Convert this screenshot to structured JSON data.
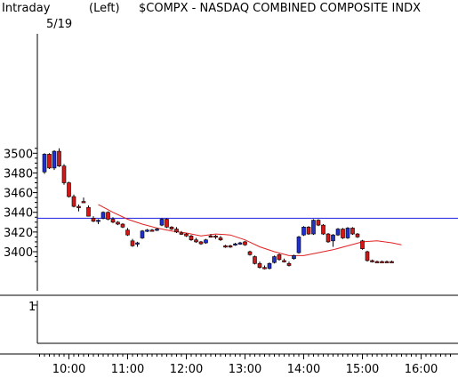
{
  "header": {
    "period": "Intraday",
    "date": "5/19",
    "scale": "(Left)",
    "symbol_title": "$COMPX - NASDAQ COMBINED COMPOSITE INDX"
  },
  "lower_panel": {
    "tick_label": "1"
  },
  "colors": {
    "up_candle": "#1f2fd0",
    "down_candle": "#d01818",
    "moving_average": "#e02020",
    "reference_line": "#2020e0",
    "axis": "#000000"
  },
  "chart_data": {
    "type": "candlestick",
    "title": "$COMPX - NASDAQ COMBINED COMPOSITE INDX",
    "y_ticks": [
      3400,
      3420,
      3440,
      3460,
      3480,
      3500
    ],
    "x_ticks": [
      "10:00",
      "11:00",
      "12:00",
      "13:00",
      "14:00",
      "15:00",
      "16:00"
    ],
    "ylim": [
      3388,
      3510
    ],
    "reference_line": 3434,
    "candles": [
      {
        "time": "9:35",
        "open": 3481,
        "high": 3500,
        "low": 3479,
        "close": 3499,
        "color": "up"
      },
      {
        "time": "9:40",
        "open": 3499,
        "high": 3500,
        "low": 3484,
        "close": 3485,
        "color": "down"
      },
      {
        "time": "9:45",
        "open": 3485,
        "high": 3503,
        "low": 3483,
        "close": 3502,
        "color": "up"
      },
      {
        "time": "9:50",
        "open": 3502,
        "high": 3505,
        "low": 3486,
        "close": 3487,
        "color": "down"
      },
      {
        "time": "9:55",
        "open": 3487,
        "high": 3489,
        "low": 3468,
        "close": 3470,
        "color": "down"
      },
      {
        "time": "10:00",
        "open": 3470,
        "high": 3471,
        "low": 3455,
        "close": 3456,
        "color": "down"
      },
      {
        "time": "10:05",
        "open": 3456,
        "high": 3458,
        "low": 3445,
        "close": 3446,
        "color": "down"
      },
      {
        "time": "10:10",
        "open": 3446,
        "high": 3448,
        "low": 3441,
        "close": 3445,
        "color": "down"
      },
      {
        "time": "10:15",
        "open": 3451,
        "high": 3455,
        "low": 3450,
        "close": 3451,
        "color": "down"
      },
      {
        "time": "10:20",
        "open": 3445,
        "high": 3447,
        "low": 3436,
        "close": 3436,
        "color": "down"
      },
      {
        "time": "10:25",
        "open": 3434,
        "high": 3436,
        "low": 3430,
        "close": 3431,
        "color": "down"
      },
      {
        "time": "10:30",
        "open": 3431,
        "high": 3433,
        "low": 3428,
        "close": 3432,
        "color": "up"
      },
      {
        "time": "10:35",
        "open": 3434,
        "high": 3441,
        "low": 3433,
        "close": 3440,
        "color": "up"
      },
      {
        "time": "10:40",
        "open": 3440,
        "high": 3441,
        "low": 3432,
        "close": 3433,
        "color": "down"
      },
      {
        "time": "10:45",
        "open": 3433,
        "high": 3435,
        "low": 3429,
        "close": 3430,
        "color": "down"
      },
      {
        "time": "10:50",
        "open": 3430,
        "high": 3431,
        "low": 3427,
        "close": 3428,
        "color": "down"
      },
      {
        "time": "10:55",
        "open": 3428,
        "high": 3429,
        "low": 3424,
        "close": 3425,
        "color": "down"
      },
      {
        "time": "11:00",
        "open": 3422,
        "high": 3424,
        "low": 3416,
        "close": 3417,
        "color": "down"
      },
      {
        "time": "11:05",
        "open": 3411,
        "high": 3413,
        "low": 3405,
        "close": 3406,
        "color": "down"
      },
      {
        "time": "11:10",
        "open": 3408,
        "high": 3410,
        "low": 3405,
        "close": 3409,
        "color": "up"
      },
      {
        "time": "11:15",
        "open": 3414,
        "high": 3422,
        "low": 3413,
        "close": 3421,
        "color": "up"
      },
      {
        "time": "11:20",
        "open": 3421,
        "high": 3423,
        "low": 3420,
        "close": 3422,
        "color": "up"
      },
      {
        "time": "11:25",
        "open": 3422,
        "high": 3423,
        "low": 3421,
        "close": 3422,
        "color": "down"
      },
      {
        "time": "11:30",
        "open": 3422,
        "high": 3424,
        "low": 3421,
        "close": 3423,
        "color": "up"
      },
      {
        "time": "11:35",
        "open": 3427,
        "high": 3434,
        "low": 3426,
        "close": 3433,
        "color": "up"
      },
      {
        "time": "11:40",
        "open": 3433,
        "high": 3434,
        "low": 3424,
        "close": 3425,
        "color": "down"
      },
      {
        "time": "11:45",
        "open": 3425,
        "high": 3426,
        "low": 3422,
        "close": 3423,
        "color": "down"
      },
      {
        "time": "11:50",
        "open": 3423,
        "high": 3425,
        "low": 3419,
        "close": 3420,
        "color": "down"
      },
      {
        "time": "11:55",
        "open": 3419,
        "high": 3421,
        "low": 3417,
        "close": 3418,
        "color": "down"
      },
      {
        "time": "12:00",
        "open": 3418,
        "high": 3419,
        "low": 3415,
        "close": 3416,
        "color": "down"
      },
      {
        "time": "12:05",
        "open": 3416,
        "high": 3417,
        "low": 3411,
        "close": 3412,
        "color": "down"
      },
      {
        "time": "12:10",
        "open": 3412,
        "high": 3414,
        "low": 3409,
        "close": 3410,
        "color": "down"
      },
      {
        "time": "12:15",
        "open": 3410,
        "high": 3411,
        "low": 3407,
        "close": 3408,
        "color": "down"
      },
      {
        "time": "12:20",
        "open": 3409,
        "high": 3413,
        "low": 3408,
        "close": 3412,
        "color": "up"
      },
      {
        "time": "12:25",
        "open": 3416,
        "high": 3418,
        "low": 3415,
        "close": 3416,
        "color": "down"
      },
      {
        "time": "12:30",
        "open": 3416,
        "high": 3417,
        "low": 3413,
        "close": 3415,
        "color": "down"
      },
      {
        "time": "12:35",
        "open": 3414,
        "high": 3416,
        "low": 3411,
        "close": 3412,
        "color": "down"
      },
      {
        "time": "12:40",
        "open": 3406,
        "high": 3407,
        "low": 3404,
        "close": 3405,
        "color": "down"
      },
      {
        "time": "12:45",
        "open": 3406,
        "high": 3407,
        "low": 3404,
        "close": 3406,
        "color": "down"
      },
      {
        "time": "12:50",
        "open": 3407,
        "high": 3409,
        "low": 3406,
        "close": 3408,
        "color": "up"
      },
      {
        "time": "12:55",
        "open": 3408,
        "high": 3410,
        "low": 3407,
        "close": 3409,
        "color": "up"
      },
      {
        "time": "13:00",
        "open": 3410,
        "high": 3411,
        "low": 3406,
        "close": 3407,
        "color": "down"
      },
      {
        "time": "13:05",
        "open": 3400,
        "high": 3401,
        "low": 3396,
        "close": 3397,
        "color": "down"
      },
      {
        "time": "13:10",
        "open": 3395,
        "high": 3396,
        "low": 3387,
        "close": 3388,
        "color": "down"
      },
      {
        "time": "13:15",
        "open": 3388,
        "high": 3390,
        "low": 3383,
        "close": 3384,
        "color": "down"
      },
      {
        "time": "13:20",
        "open": 3384,
        "high": 3386,
        "low": 3382,
        "close": 3383,
        "color": "down"
      },
      {
        "time": "13:25",
        "open": 3383,
        "high": 3389,
        "low": 3382,
        "close": 3388,
        "color": "up"
      },
      {
        "time": "13:30",
        "open": 3389,
        "high": 3396,
        "low": 3388,
        "close": 3395,
        "color": "up"
      },
      {
        "time": "13:35",
        "open": 3397,
        "high": 3398,
        "low": 3391,
        "close": 3392,
        "color": "down"
      },
      {
        "time": "13:40",
        "open": 3390,
        "high": 3393,
        "low": 3389,
        "close": 3391,
        "color": "down"
      },
      {
        "time": "13:45",
        "open": 3388,
        "high": 3390,
        "low": 3385,
        "close": 3386,
        "color": "down"
      },
      {
        "time": "13:50",
        "open": 3393,
        "high": 3397,
        "low": 3392,
        "close": 3396,
        "color": "up"
      },
      {
        "time": "13:55",
        "open": 3399,
        "high": 3416,
        "low": 3398,
        "close": 3415,
        "color": "up"
      },
      {
        "time": "14:00",
        "open": 3417,
        "high": 3426,
        "low": 3416,
        "close": 3425,
        "color": "up"
      },
      {
        "time": "14:05",
        "open": 3425,
        "high": 3426,
        "low": 3417,
        "close": 3418,
        "color": "down"
      },
      {
        "time": "14:10",
        "open": 3418,
        "high": 3433,
        "low": 3417,
        "close": 3432,
        "color": "up"
      },
      {
        "time": "14:15",
        "open": 3432,
        "high": 3433,
        "low": 3426,
        "close": 3427,
        "color": "down"
      },
      {
        "time": "14:20",
        "open": 3427,
        "high": 3428,
        "low": 3417,
        "close": 3418,
        "color": "down"
      },
      {
        "time": "14:25",
        "open": 3418,
        "high": 3419,
        "low": 3409,
        "close": 3410,
        "color": "down"
      },
      {
        "time": "14:30",
        "open": 3411,
        "high": 3418,
        "low": 3405,
        "close": 3417,
        "color": "up"
      },
      {
        "time": "14:35",
        "open": 3417,
        "high": 3424,
        "low": 3416,
        "close": 3423,
        "color": "up"
      },
      {
        "time": "14:40",
        "open": 3423,
        "high": 3424,
        "low": 3413,
        "close": 3414,
        "color": "down"
      },
      {
        "time": "14:45",
        "open": 3414,
        "high": 3425,
        "low": 3413,
        "close": 3424,
        "color": "up"
      },
      {
        "time": "14:50",
        "open": 3424,
        "high": 3425,
        "low": 3417,
        "close": 3418,
        "color": "down"
      },
      {
        "time": "14:55",
        "open": 3418,
        "high": 3419,
        "low": 3414,
        "close": 3415,
        "color": "down"
      },
      {
        "time": "15:00",
        "open": 3411,
        "high": 3412,
        "low": 3402,
        "close": 3403,
        "color": "down"
      },
      {
        "time": "15:05",
        "open": 3400,
        "high": 3401,
        "low": 3390,
        "close": 3391,
        "color": "down"
      },
      {
        "time": "15:10",
        "open": 3391,
        "high": 3392,
        "low": 3389,
        "close": 3390,
        "color": "down"
      },
      {
        "time": "15:15",
        "open": 3390,
        "high": 3391,
        "low": 3389,
        "close": 3390,
        "color": "down"
      },
      {
        "time": "15:20",
        "open": 3390,
        "high": 3391,
        "low": 3389,
        "close": 3390,
        "color": "down"
      },
      {
        "time": "15:25",
        "open": 3390,
        "high": 3391,
        "low": 3389,
        "close": 3390,
        "color": "down"
      },
      {
        "time": "15:30",
        "open": 3390,
        "high": 3391,
        "low": 3389,
        "close": 3390,
        "color": "down"
      }
    ],
    "moving_average": [
      {
        "time": "10:30",
        "value": 3448
      },
      {
        "time": "10:45",
        "value": 3440
      },
      {
        "time": "11:00",
        "value": 3433
      },
      {
        "time": "11:15",
        "value": 3428
      },
      {
        "time": "11:30",
        "value": 3424
      },
      {
        "time": "11:45",
        "value": 3421
      },
      {
        "time": "12:00",
        "value": 3419
      },
      {
        "time": "12:15",
        "value": 3416
      },
      {
        "time": "12:30",
        "value": 3418
      },
      {
        "time": "12:45",
        "value": 3417
      },
      {
        "time": "13:00",
        "value": 3412
      },
      {
        "time": "13:15",
        "value": 3405
      },
      {
        "time": "13:30",
        "value": 3400
      },
      {
        "time": "13:45",
        "value": 3396
      },
      {
        "time": "14:00",
        "value": 3396
      },
      {
        "time": "14:15",
        "value": 3399
      },
      {
        "time": "14:30",
        "value": 3402
      },
      {
        "time": "14:45",
        "value": 3406
      },
      {
        "time": "15:00",
        "value": 3410
      },
      {
        "time": "15:15",
        "value": 3411
      },
      {
        "time": "15:30",
        "value": 3409
      },
      {
        "time": "15:40",
        "value": 3407
      }
    ]
  }
}
